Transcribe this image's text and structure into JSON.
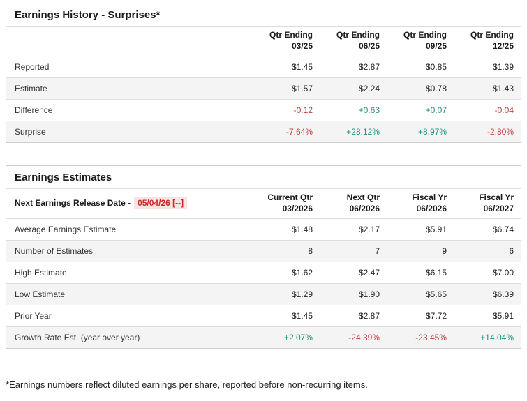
{
  "colors": {
    "positive": "#1f9478",
    "negative": "#c43b3b",
    "release_date_text": "#cc2b2b",
    "release_date_highlight": "#fbe3e3",
    "stripe_row_bg": "#f4f4f4",
    "border": "#cccccc"
  },
  "history": {
    "title": "Earnings History - Surprises*",
    "columns": [
      {
        "line1": "Qtr Ending",
        "line2": "03/25"
      },
      {
        "line1": "Qtr Ending",
        "line2": "06/25"
      },
      {
        "line1": "Qtr Ending",
        "line2": "09/25"
      },
      {
        "line1": "Qtr Ending",
        "line2": "12/25"
      }
    ],
    "rows": [
      {
        "label": "Reported",
        "values": [
          {
            "text": "$1.45",
            "tone": "neutral"
          },
          {
            "text": "$2.87",
            "tone": "neutral"
          },
          {
            "text": "$0.85",
            "tone": "neutral"
          },
          {
            "text": "$1.39",
            "tone": "neutral"
          }
        ]
      },
      {
        "label": "Estimate",
        "values": [
          {
            "text": "$1.57",
            "tone": "neutral"
          },
          {
            "text": "$2.24",
            "tone": "neutral"
          },
          {
            "text": "$0.78",
            "tone": "neutral"
          },
          {
            "text": "$1.43",
            "tone": "neutral"
          }
        ]
      },
      {
        "label": "Difference",
        "values": [
          {
            "text": "-0.12",
            "tone": "neg"
          },
          {
            "text": "+0.63",
            "tone": "pos"
          },
          {
            "text": "+0.07",
            "tone": "pos"
          },
          {
            "text": "-0.04",
            "tone": "neg"
          }
        ]
      },
      {
        "label": "Surprise",
        "values": [
          {
            "text": "-7.64%",
            "tone": "neg"
          },
          {
            "text": "+28.12%",
            "tone": "pos"
          },
          {
            "text": "+8.97%",
            "tone": "pos"
          },
          {
            "text": "-2.80%",
            "tone": "neg"
          }
        ]
      }
    ]
  },
  "estimates": {
    "title": "Earnings Estimates",
    "release": {
      "label": "Next Earnings Release Date -",
      "date": "05/04/26 [--]"
    },
    "columns": [
      {
        "line1": "Current Qtr",
        "line2": "03/2026"
      },
      {
        "line1": "Next Qtr",
        "line2": "06/2026"
      },
      {
        "line1": "Fiscal Yr",
        "line2": "06/2026"
      },
      {
        "line1": "Fiscal Yr",
        "line2": "06/2027"
      }
    ],
    "rows": [
      {
        "label": "Average Earnings Estimate",
        "values": [
          {
            "text": "$1.48",
            "tone": "neutral"
          },
          {
            "text": "$2.17",
            "tone": "neutral"
          },
          {
            "text": "$5.91",
            "tone": "neutral"
          },
          {
            "text": "$6.74",
            "tone": "neutral"
          }
        ]
      },
      {
        "label": "Number of Estimates",
        "values": [
          {
            "text": "8",
            "tone": "neutral"
          },
          {
            "text": "7",
            "tone": "neutral"
          },
          {
            "text": "9",
            "tone": "neutral"
          },
          {
            "text": "6",
            "tone": "neutral"
          }
        ]
      },
      {
        "label": "High Estimate",
        "values": [
          {
            "text": "$1.62",
            "tone": "neutral"
          },
          {
            "text": "$2.47",
            "tone": "neutral"
          },
          {
            "text": "$6.15",
            "tone": "neutral"
          },
          {
            "text": "$7.00",
            "tone": "neutral"
          }
        ]
      },
      {
        "label": "Low Estimate",
        "values": [
          {
            "text": "$1.29",
            "tone": "neutral"
          },
          {
            "text": "$1.90",
            "tone": "neutral"
          },
          {
            "text": "$5.65",
            "tone": "neutral"
          },
          {
            "text": "$6.39",
            "tone": "neutral"
          }
        ]
      },
      {
        "label": "Prior Year",
        "values": [
          {
            "text": "$1.45",
            "tone": "neutral"
          },
          {
            "text": "$2.87",
            "tone": "neutral"
          },
          {
            "text": "$7.72",
            "tone": "neutral"
          },
          {
            "text": "$5.91",
            "tone": "neutral"
          }
        ]
      },
      {
        "label": "Growth Rate Est. (year over year)",
        "values": [
          {
            "text": "+2.07%",
            "tone": "pos"
          },
          {
            "text": "-24.39%",
            "tone": "neg"
          },
          {
            "text": "-23.45%",
            "tone": "neg"
          },
          {
            "text": "+14.04%",
            "tone": "pos"
          }
        ]
      }
    ]
  },
  "footnote": "*Earnings numbers reflect diluted earnings per share, reported before non-recurring items."
}
